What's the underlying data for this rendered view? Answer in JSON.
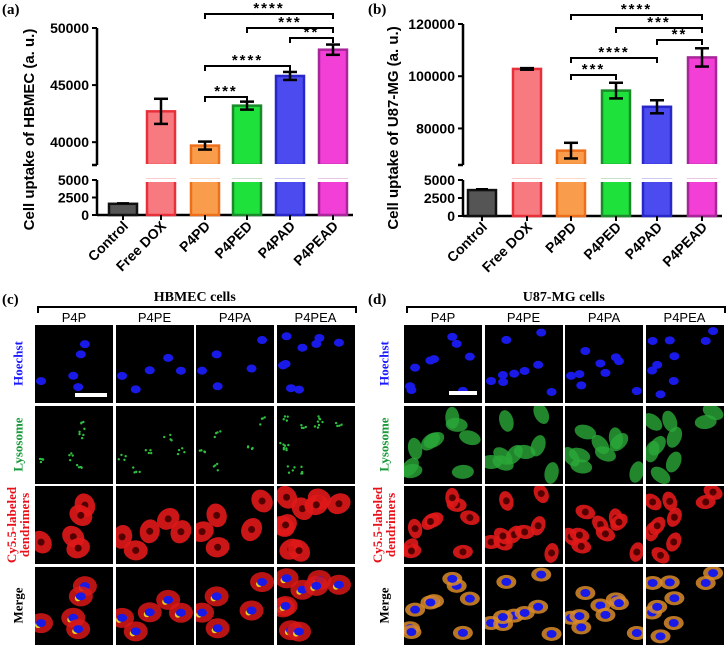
{
  "panels": {
    "a": "(a)",
    "b": "(b)",
    "c": "(c)",
    "d": "(d)"
  },
  "chart_data": [
    {
      "type": "bar",
      "title": "",
      "ylabel": "Cell uptake of HBMEC (a. u.)",
      "xlabel": "",
      "categories": [
        "Control",
        "Free DOX",
        "P4PD",
        "P4PED",
        "P4PAD",
        "P4PEAD"
      ],
      "values": [
        1600,
        42700,
        39700,
        43200,
        45800,
        48100
      ],
      "errors": [
        100,
        1100,
        350,
        350,
        350,
        450
      ],
      "colors": [
        "#555555",
        "#f77a80",
        "#f99d4c",
        "#1ee13c",
        "#4b4bf0",
        "#f23fd5"
      ],
      "edge_colors": [
        "#111111",
        "#e8303a",
        "#ee6f1a",
        "#1a8a2a",
        "#2828c8",
        "#a8269a"
      ],
      "ylim_lower": [
        0,
        5000
      ],
      "ylim_upper": [
        38000,
        50000
      ],
      "yticks_lower": [
        "0",
        "2500",
        "5000"
      ],
      "yticks_upper": [
        "40000",
        "45000",
        "50000"
      ],
      "significance": [
        {
          "from": 2,
          "to": 5,
          "label": "****"
        },
        {
          "from": 3,
          "to": 5,
          "label": "***"
        },
        {
          "from": 4,
          "to": 5,
          "label": "**"
        },
        {
          "from": 2,
          "to": 4,
          "label": "****"
        },
        {
          "from": 2,
          "to": 3,
          "label": "***"
        }
      ]
    },
    {
      "type": "bar",
      "title": "",
      "ylabel": "Cell uptake of U87-MG (a. u.)",
      "xlabel": "",
      "categories": [
        "Control",
        "Free DOX",
        "P4PD",
        "P4PED",
        "P4PAD",
        "P4PEAD"
      ],
      "values": [
        3600,
        102800,
        71500,
        94500,
        88300,
        107200
      ],
      "errors": [
        150,
        300,
        3000,
        3000,
        2500,
        3500
      ],
      "colors": [
        "#555555",
        "#f77a80",
        "#f99d4c",
        "#1ee13c",
        "#4b4bf0",
        "#f23fd5"
      ],
      "edge_colors": [
        "#111111",
        "#e8303a",
        "#ee6f1a",
        "#1a8a2a",
        "#2828c8",
        "#a8269a"
      ],
      "ylim_lower": [
        0,
        5000
      ],
      "ylim_upper": [
        66000,
        120000
      ],
      "yticks_lower": [
        "0",
        "2500",
        "5000"
      ],
      "yticks_upper": [
        "80000",
        "100000",
        "120000"
      ],
      "significance": [
        {
          "from": 2,
          "to": 5,
          "label": "****"
        },
        {
          "from": 3,
          "to": 5,
          "label": "***"
        },
        {
          "from": 4,
          "to": 5,
          "label": "**"
        },
        {
          "from": 2,
          "to": 4,
          "label": "****"
        },
        {
          "from": 2,
          "to": 3,
          "label": "***"
        }
      ]
    }
  ],
  "microscopy": [
    {
      "title": "HBMEC cells",
      "columns": [
        "P4P",
        "P4PE",
        "P4PA",
        "P4PEA"
      ],
      "rows": [
        {
          "label": "Hoechst",
          "color": "#1a1aff"
        },
        {
          "label": "Lysosome",
          "color": "#1a9a3a"
        },
        {
          "label": "Cy5.5-labeled dendrimers",
          "color": "#e8101a"
        },
        {
          "label": "Merge",
          "color": "#000000"
        }
      ]
    },
    {
      "title": "U87-MG cells",
      "columns": [
        "P4P",
        "P4PE",
        "P4PA",
        "P4PEA"
      ],
      "rows": [
        {
          "label": "Hoechst",
          "color": "#1a1aff"
        },
        {
          "label": "Lysosome",
          "color": "#1a9a3a"
        },
        {
          "label": "Cy5.5-labeled dendrimers",
          "color": "#e8101a"
        },
        {
          "label": "Merge",
          "color": "#000000"
        }
      ]
    }
  ]
}
